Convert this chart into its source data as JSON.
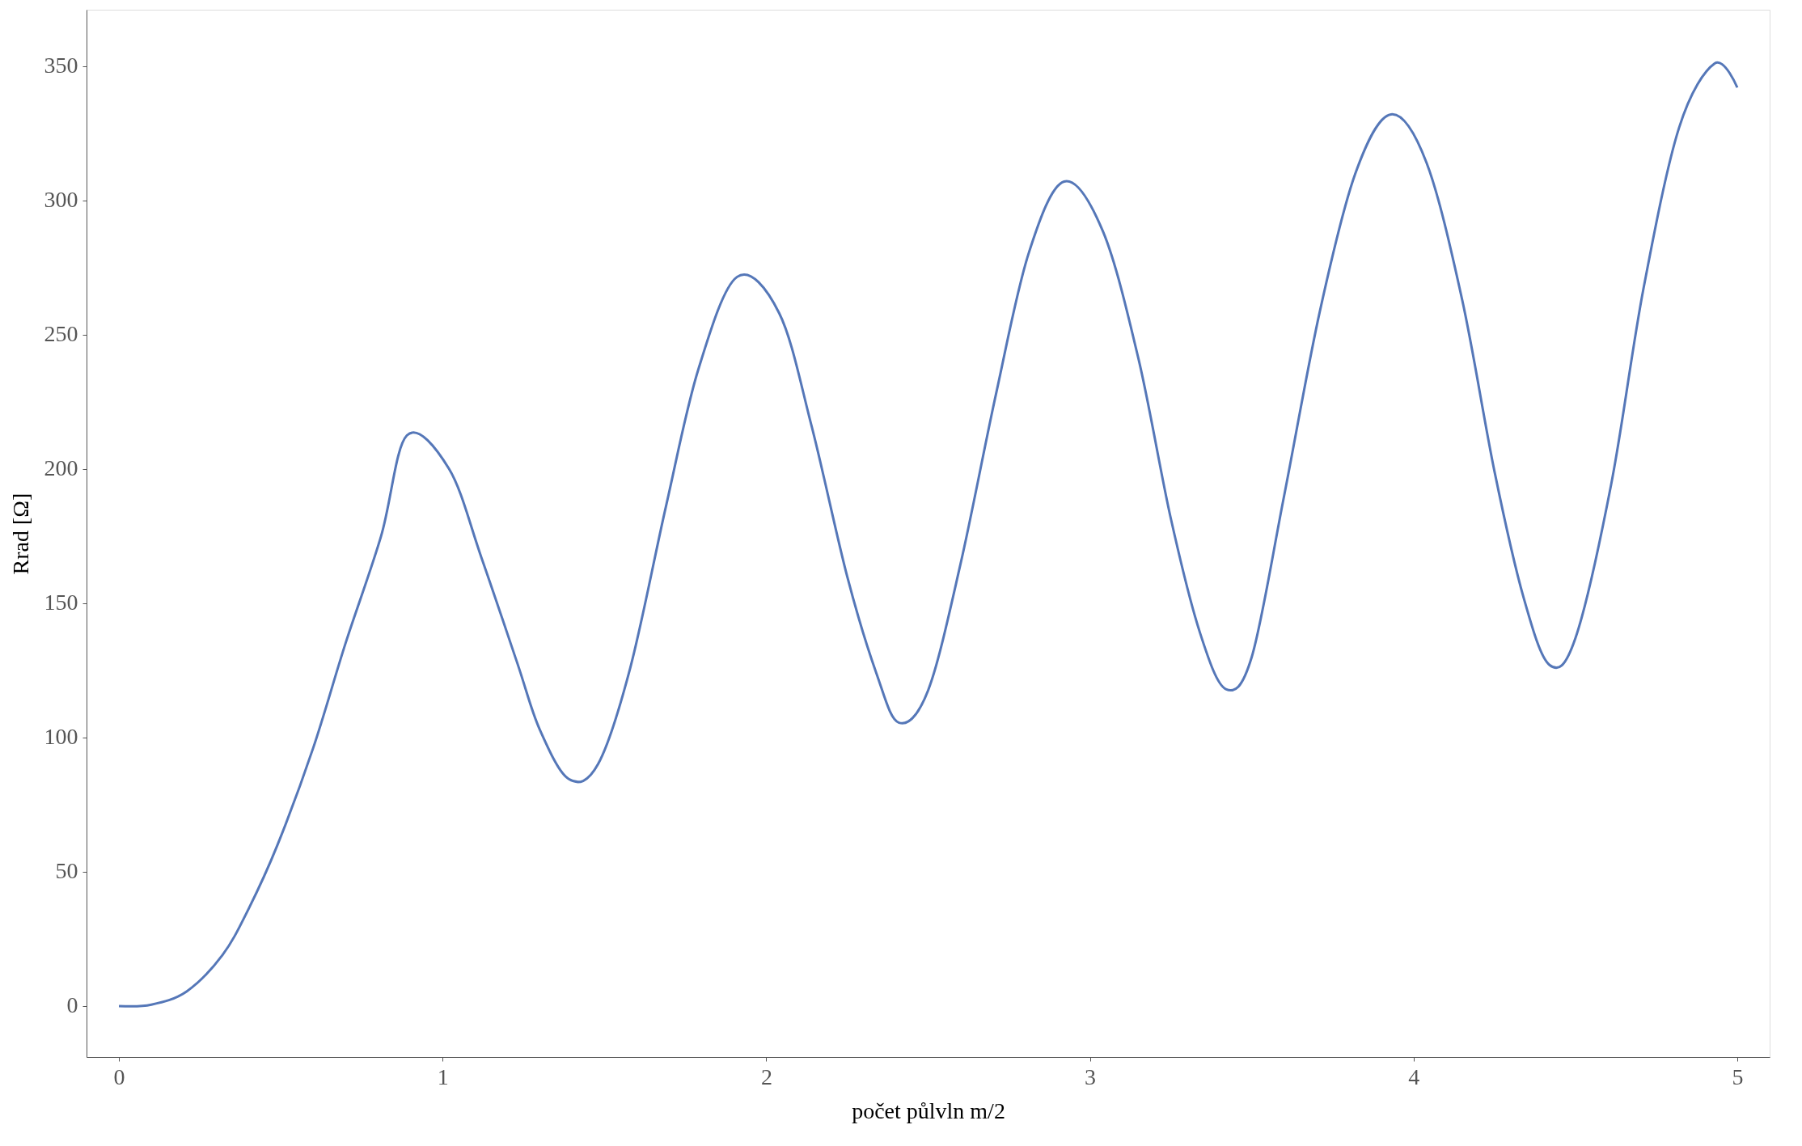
{
  "chart_data": {
    "type": "line",
    "xlabel": "počet půlvln m/2",
    "ylabel": "Rrad  [Ω]",
    "xlim": [
      -0.1,
      5.1
    ],
    "ylim": [
      -19,
      371
    ],
    "xticks": [
      0,
      1,
      2,
      3,
      4,
      5
    ],
    "yticks": [
      0,
      50,
      100,
      150,
      200,
      250,
      300,
      350
    ],
    "grid": false,
    "marker": "none",
    "line_style": "solid",
    "series": [
      {
        "color": "#5577b8",
        "x": [
          0,
          0.1,
          0.21,
          0.32,
          0.4,
          0.49,
          0.6,
          0.7,
          0.81,
          0.89,
          1.02,
          1.12,
          1.23,
          1.3,
          1.39,
          1.48,
          1.58,
          1.69,
          1.79,
          1.91,
          2.04,
          2.14,
          2.25,
          2.34,
          2.41,
          2.5,
          2.6,
          2.71,
          2.81,
          2.92,
          3.04,
          3.15,
          3.25,
          3.34,
          3.42,
          3.5,
          3.6,
          3.71,
          3.82,
          3.93,
          4.04,
          4.15,
          4.25,
          4.34,
          4.42,
          4.5,
          4.61,
          4.71,
          4.82,
          4.93,
          5.0
        ],
        "values": [
          0,
          0.5,
          5.5,
          19,
          36,
          60,
          96,
          135,
          175,
          212.5,
          200,
          167,
          128,
          103,
          84.5,
          90,
          126,
          186,
          237,
          271.5,
          258,
          216,
          160,
          124,
          105.5,
          117.5,
          164.5,
          228,
          280,
          307,
          288.5,
          241,
          181.5,
          139,
          118,
          130,
          190,
          258.5,
          310,
          332,
          314,
          263,
          199,
          152,
          127,
          137,
          194,
          267,
          327,
          351,
          342
        ]
      }
    ]
  }
}
